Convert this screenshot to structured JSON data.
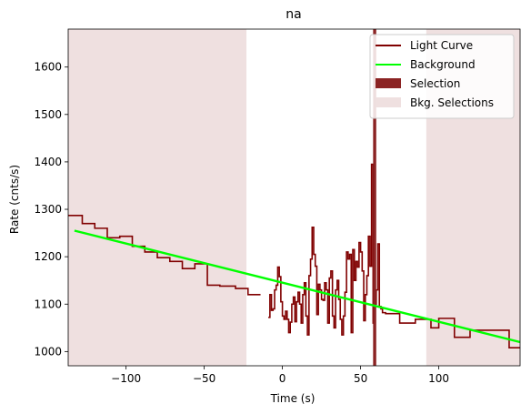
{
  "chart_data": {
    "type": "line",
    "title": "na",
    "xlabel": "Time (s)",
    "ylabel": "Rate (cnts/s)",
    "xlim": [
      -137,
      152
    ],
    "ylim": [
      970,
      1680
    ],
    "xticks": [
      -100,
      -50,
      0,
      50,
      100
    ],
    "xtick_labels": [
      "−100",
      "−50",
      "0",
      "50",
      "100"
    ],
    "yticks": [
      1000,
      1100,
      1200,
      1300,
      1400,
      1500,
      1600
    ],
    "ytick_labels": [
      "1000",
      "1100",
      "1200",
      "1300",
      "1400",
      "1500",
      "1600"
    ],
    "grid": false,
    "legend": {
      "position": "top-right",
      "entries": [
        {
          "label": "Light Curve",
          "kind": "line",
          "color": "#800000"
        },
        {
          "label": "Background",
          "kind": "line",
          "color": "#00ff00"
        },
        {
          "label": "Selection",
          "kind": "patch",
          "color": "#8b2323"
        },
        {
          "label": "Bkg. Selections",
          "kind": "patch",
          "color": "#efe0e0"
        }
      ]
    },
    "series": [
      {
        "name": "Light Curve",
        "style": "steps-post",
        "color": "#800000",
        "segments": [
          [
            [
              -137,
              1287
            ],
            [
              -128,
              1270
            ],
            [
              -120,
              1260
            ],
            [
              -112,
              1240
            ],
            [
              -104,
              1243
            ],
            [
              -96,
              1222
            ],
            [
              -88,
              1210
            ],
            [
              -80,
              1198
            ],
            [
              -72,
              1190
            ],
            [
              -64,
              1175
            ],
            [
              -56,
              1185
            ],
            [
              -48,
              1140
            ],
            [
              -40,
              1138
            ],
            [
              -30,
              1133
            ],
            [
              -22,
              1120
            ],
            [
              -14,
              1120
            ]
          ],
          [
            [
              -9,
              1072
            ],
            [
              -8,
              1120
            ],
            [
              -7,
              1087
            ],
            [
              -6,
              1090
            ],
            [
              -5,
              1130
            ],
            [
              -4,
              1140
            ],
            [
              -3,
              1178
            ],
            [
              -2,
              1158
            ],
            [
              -1,
              1105
            ],
            [
              0,
              1075
            ],
            [
              1,
              1068
            ],
            [
              2,
              1085
            ],
            [
              3,
              1068
            ],
            [
              4,
              1040
            ],
            [
              5,
              1062
            ],
            [
              6,
              1100
            ],
            [
              7,
              1115
            ],
            [
              8,
              1063
            ],
            [
              9,
              1105
            ],
            [
              10,
              1125
            ],
            [
              11,
              1100
            ],
            [
              12,
              1060
            ],
            [
              13,
              1120
            ],
            [
              14,
              1145
            ],
            [
              15,
              1075
            ],
            [
              16,
              1035
            ],
            [
              17,
              1160
            ],
            [
              18,
              1195
            ],
            [
              19,
              1262
            ],
            [
              20,
              1205
            ],
            [
              21,
              1180
            ],
            [
              22,
              1078
            ],
            [
              23,
              1142
            ],
            [
              24,
              1130
            ],
            [
              25,
              1110
            ],
            [
              26,
              1108
            ],
            [
              27,
              1145
            ],
            [
              28,
              1130
            ],
            [
              29,
              1060
            ],
            [
              30,
              1155
            ],
            [
              31,
              1170
            ],
            [
              32,
              1075
            ],
            [
              33,
              1050
            ],
            [
              34,
              1130
            ],
            [
              35,
              1150
            ],
            [
              36,
              1110
            ],
            [
              37,
              1068
            ],
            [
              38,
              1035
            ],
            [
              39,
              1075
            ],
            [
              40,
              1125
            ],
            [
              41,
              1210
            ],
            [
              42,
              1195
            ],
            [
              43,
              1205
            ],
            [
              44,
              1040
            ],
            [
              45,
              1215
            ],
            [
              46,
              1150
            ],
            [
              47,
              1190
            ],
            [
              48,
              1178
            ],
            [
              49,
              1230
            ],
            [
              50,
              1210
            ],
            [
              51,
              1170
            ],
            [
              52,
              1065
            ],
            [
              53,
              1120
            ],
            [
              54,
              1160
            ],
            [
              55,
              1243
            ],
            [
              56,
              1180
            ],
            [
              57,
              1395
            ],
            [
              58,
              1060
            ],
            [
              59,
              1100
            ],
            [
              60,
              1130
            ],
            [
              61,
              1227
            ],
            [
              62,
              1095
            ],
            [
              63,
              1090
            ],
            [
              64,
              1082
            ],
            [
              66,
              1080
            ],
            [
              75,
              1060
            ],
            [
              85,
              1068
            ],
            [
              95,
              1050
            ],
            [
              100,
              1070
            ],
            [
              110,
              1030
            ],
            [
              120,
              1045
            ],
            [
              130,
              1045
            ],
            [
              145,
              1008
            ],
            [
              152,
              1008
            ]
          ]
        ]
      },
      {
        "name": "Background",
        "style": "line",
        "color": "#00ff00",
        "x": [
          -133,
          152
        ],
        "y": [
          1255,
          1020
        ]
      }
    ],
    "spans": [
      {
        "name": "Selection",
        "x": [
          58,
          60
        ],
        "color": "#8b2323"
      },
      {
        "name": "Bkg. Selections",
        "x": [
          -137,
          -23
        ],
        "color": "#efe0e0"
      },
      {
        "name": "Bkg. Selections",
        "x": [
          92,
          152
        ],
        "color": "#efe0e0"
      }
    ]
  }
}
